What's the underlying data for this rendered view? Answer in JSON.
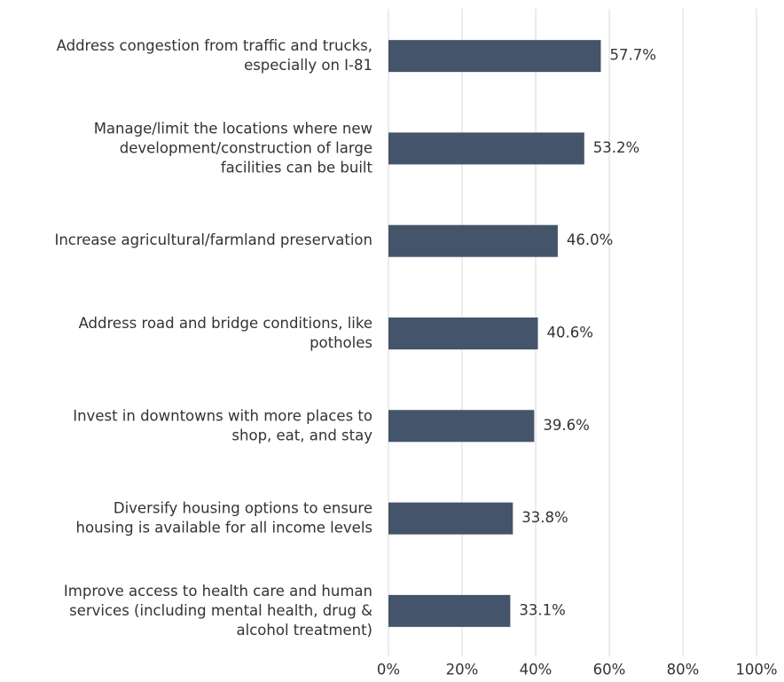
{
  "chart_data": {
    "type": "bar",
    "orientation": "horizontal",
    "categories": [
      "Address congestion from traffic and trucks,\nespecially on I-81",
      "Manage/limit the locations where new\ndevelopment/construction of large\nfacilities can be built",
      "Increase agricultural/farmland preservation",
      "Address road and bridge conditions, like\npotholes",
      "Invest in downtowns with more places to\nshop, eat, and stay",
      "Diversify housing options to ensure\nhousing is available for all income levels",
      "Improve access to health care and human\nservices (including mental health, drug &\nalcohol treatment)"
    ],
    "values": [
      57.7,
      53.2,
      46.0,
      40.6,
      39.6,
      33.8,
      33.1
    ],
    "value_labels": [
      "57.7%",
      "53.2%",
      "46.0%",
      "40.6%",
      "39.6%",
      "33.8%",
      "33.1%"
    ],
    "color": "#44546a",
    "xlim": [
      0,
      100
    ],
    "xticks": [
      {
        "value": 0,
        "label": "0%"
      },
      {
        "value": 20,
        "label": "20%"
      },
      {
        "value": 40,
        "label": "40%"
      },
      {
        "value": 60,
        "label": "60%"
      },
      {
        "value": 80,
        "label": "80%"
      },
      {
        "value": 100,
        "label": "100%"
      }
    ],
    "grid": true
  }
}
